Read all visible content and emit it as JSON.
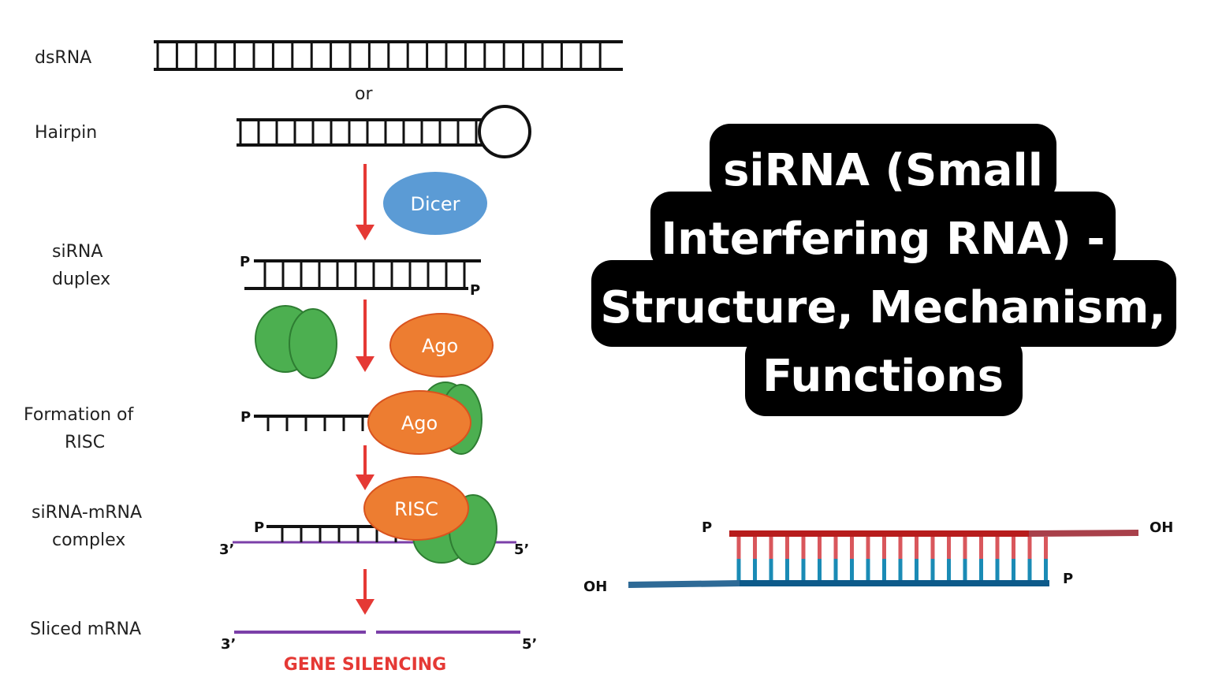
{
  "title_lines": [
    "siRNA (Small",
    "Interfering RNA) -",
    "Structure, Mechanism,",
    "Functions"
  ],
  "labels": {
    "dsrna": "dsRNA",
    "or": "or",
    "hairpin": "Hairpin",
    "sirna_duplex": [
      "siRNA",
      "duplex"
    ],
    "risc_formation": [
      "Formation of",
      "RISC"
    ],
    "sirna_mrna": [
      "siRNA-mRNA",
      "complex"
    ],
    "sliced": "Sliced mRNA",
    "gene_silencing": "GENE SILENCING"
  },
  "proteins": {
    "dicer": "Dicer",
    "ago1": "Ago",
    "ago2": "Ago",
    "risc": "RISC"
  },
  "ends": {
    "p": "P",
    "three_prime": "3’",
    "five_prime": "5’",
    "oh": "OH"
  },
  "colors": {
    "arrow": "#e53935",
    "dicer": "#5b9bd5",
    "ago": "#ed7d31",
    "green": "#4caf50",
    "mrna": "#7b3fa8",
    "sense": "#b71c1c",
    "antisense": "#0d5a8a",
    "title_bg": "#000000"
  }
}
